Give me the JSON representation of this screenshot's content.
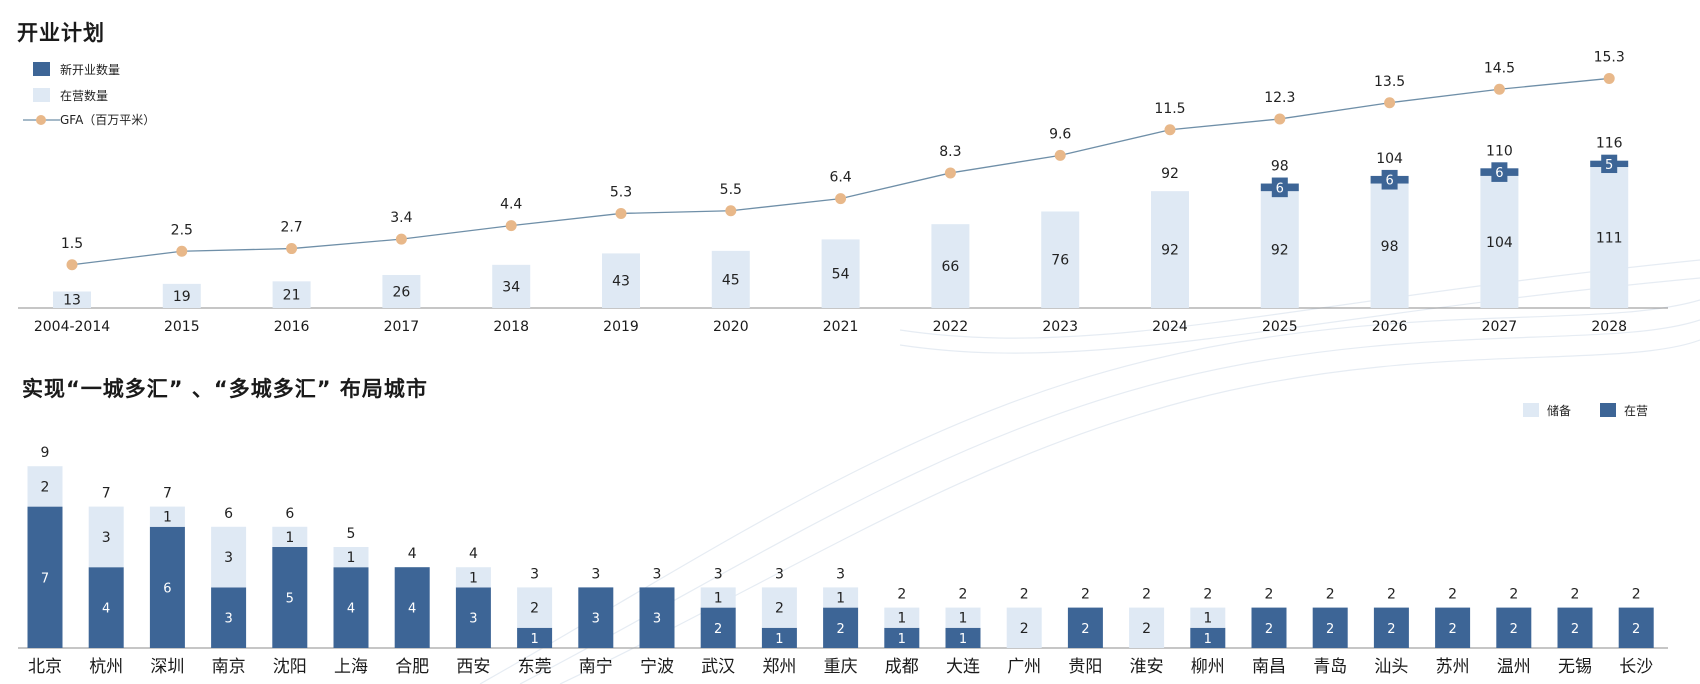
{
  "section1": {
    "title": "开业计划"
  },
  "section2": {
    "title": "实现“一城多汇” 、“多城多汇” 布局城市"
  },
  "colors": {
    "dark": "#3d6596",
    "light": "#dfe9f4",
    "line": "#6f8fa8",
    "marker": "#e8b88a"
  },
  "chart_data": [
    {
      "type": "bar",
      "stacked": true,
      "categories": [
        "2004-2014",
        "2015",
        "2016",
        "2017",
        "2018",
        "2019",
        "2020",
        "2021",
        "2022",
        "2023",
        "2024",
        "2025",
        "2026",
        "2027",
        "2028"
      ],
      "series": [
        {
          "name": "新开业数量",
          "values": [
            0,
            0,
            0,
            0,
            0,
            0,
            0,
            0,
            0,
            0,
            0,
            6,
            6,
            6,
            5
          ]
        },
        {
          "name": "在营数量",
          "values": [
            13,
            19,
            21,
            26,
            34,
            43,
            45,
            54,
            66,
            76,
            92,
            92,
            98,
            104,
            111
          ]
        },
        {
          "name": "GFA（百万平米）",
          "type": "line",
          "values": [
            1.5,
            2.5,
            2.7,
            3.4,
            4.4,
            5.3,
            5.5,
            6.4,
            8.3,
            9.6,
            11.5,
            12.3,
            13.5,
            14.5,
            15.3
          ]
        }
      ],
      "totals": [
        13,
        19,
        21,
        26,
        34,
        43,
        45,
        54,
        66,
        76,
        92,
        98,
        104,
        110,
        116
      ],
      "legend_position": "top-left"
    },
    {
      "type": "bar",
      "stacked": true,
      "categories": [
        "北京",
        "杭州",
        "深圳",
        "南京",
        "沈阳",
        "上海",
        "合肥",
        "西安",
        "东莞",
        "南宁",
        "宁波",
        "武汉",
        "郑州",
        "重庆",
        "成都",
        "大连",
        "广州",
        "贵阳",
        "淮安",
        "柳州",
        "南昌",
        "青岛",
        "汕头",
        "苏州",
        "温州",
        "无锡",
        "长沙"
      ],
      "series": [
        {
          "name": "在营",
          "values": [
            7,
            4,
            6,
            3,
            5,
            4,
            4,
            3,
            1,
            3,
            3,
            2,
            1,
            2,
            1,
            1,
            0,
            2,
            0,
            1,
            2,
            2,
            2,
            2,
            2,
            2,
            2
          ]
        },
        {
          "name": "储备",
          "values": [
            2,
            3,
            1,
            3,
            1,
            1,
            0,
            1,
            2,
            0,
            0,
            1,
            2,
            1,
            1,
            1,
            2,
            0,
            2,
            1,
            0,
            0,
            0,
            0,
            0,
            0,
            0
          ]
        }
      ],
      "totals": [
        9,
        7,
        7,
        6,
        6,
        5,
        4,
        4,
        3,
        3,
        3,
        3,
        3,
        3,
        2,
        2,
        2,
        2,
        2,
        2,
        2,
        2,
        2,
        2,
        2,
        2,
        2
      ],
      "legend_position": "top-right"
    }
  ]
}
